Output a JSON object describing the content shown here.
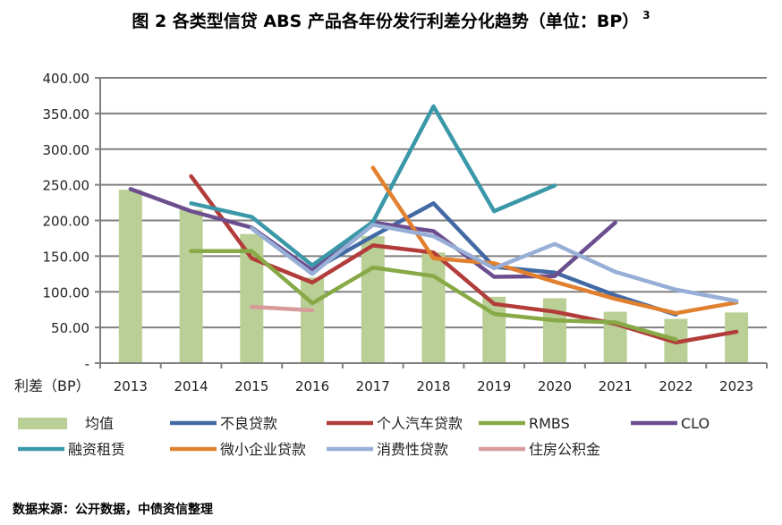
{
  "chart_data": {
    "type": "bar+line",
    "title": "图 2 各类型信贷 ABS 产品各年份发行利差分化趋势（单位：BP）",
    "title_superscript": "3",
    "ylabel": "利差（BP）",
    "ylim": [
      0,
      400
    ],
    "yticks": [
      "-",
      "50.00",
      "100.00",
      "150.00",
      "200.00",
      "250.00",
      "300.00",
      "350.00",
      "400.00"
    ],
    "categories": [
      "2013",
      "2014",
      "2015",
      "2016",
      "2017",
      "2018",
      "2019",
      "2020",
      "2021",
      "2022",
      "2023"
    ],
    "grid": true,
    "legend_placement": "bottom",
    "bar_series": {
      "name": "均值",
      "color": "#b9cf95",
      "values": [
        243,
        215,
        181,
        120,
        178,
        155,
        93,
        91,
        72,
        62,
        71
      ]
    },
    "series": [
      {
        "name": "不良贷款",
        "color": "#4269a4",
        "values": [
          null,
          null,
          null,
          130,
          178,
          224,
          135,
          127,
          95,
          68,
          null
        ]
      },
      {
        "name": "个人汽车贷款",
        "color": "#b23c3a",
        "values": [
          null,
          262,
          147,
          113,
          165,
          155,
          83,
          72,
          55,
          29,
          44
        ]
      },
      {
        "name": "RMBS",
        "color": "#87a946",
        "values": [
          null,
          157,
          157,
          84,
          134,
          122,
          69,
          60,
          57,
          33,
          null
        ]
      },
      {
        "name": "CLO",
        "color": "#6c4e8f",
        "values": [
          244,
          213,
          190,
          130,
          197,
          185,
          121,
          122,
          197,
          null,
          null
        ]
      },
      {
        "name": "融资租赁",
        "color": "#3a98a8",
        "values": [
          null,
          224,
          205,
          137,
          198,
          360,
          213,
          249,
          null,
          null,
          null
        ]
      },
      {
        "name": "微小企业贷款",
        "color": "#e1812f",
        "values": [
          null,
          null,
          null,
          null,
          274,
          147,
          140,
          114,
          90,
          70,
          85
        ]
      },
      {
        "name": "消费性贷款",
        "color": "#97afd7",
        "values": [
          null,
          null,
          189,
          125,
          194,
          178,
          133,
          167,
          128,
          103,
          87
        ]
      },
      {
        "name": "住房公积金",
        "color": "#d89b9b",
        "values": [
          null,
          null,
          79,
          74,
          null,
          null,
          null,
          null,
          null,
          null,
          null
        ]
      }
    ]
  },
  "source": "数据来源：公开数据，中债资信整理"
}
